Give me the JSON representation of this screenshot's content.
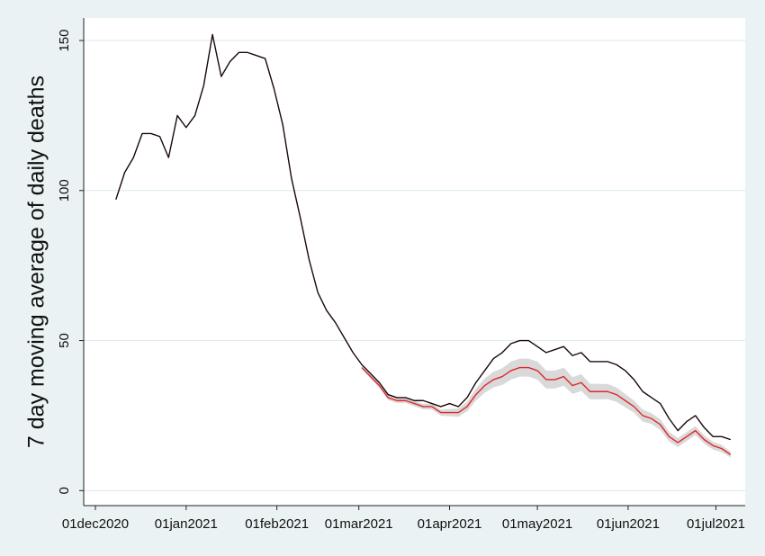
{
  "chart_data": {
    "type": "line",
    "y_label": "7 day moving average of daily deaths",
    "x": [
      "2020-12-08",
      "2020-12-11",
      "2020-12-14",
      "2020-12-17",
      "2020-12-20",
      "2020-12-23",
      "2020-12-26",
      "2020-12-29",
      "2021-01-01",
      "2021-01-04",
      "2021-01-07",
      "2021-01-10",
      "2021-01-13",
      "2021-01-16",
      "2021-01-19",
      "2021-01-22",
      "2021-01-25",
      "2021-01-28",
      "2021-01-31",
      "2021-02-03",
      "2021-02-06",
      "2021-02-09",
      "2021-02-12",
      "2021-02-15",
      "2021-02-18",
      "2021-02-21",
      "2021-02-24",
      "2021-02-27",
      "2021-03-02",
      "2021-03-05",
      "2021-03-08",
      "2021-03-11",
      "2021-03-14",
      "2021-03-17",
      "2021-03-20",
      "2021-03-23",
      "2021-03-26",
      "2021-03-29",
      "2021-04-01",
      "2021-04-04",
      "2021-04-07",
      "2021-04-10",
      "2021-04-13",
      "2021-04-16",
      "2021-04-19",
      "2021-04-22",
      "2021-04-25",
      "2021-04-28",
      "2021-05-01",
      "2021-05-04",
      "2021-05-07",
      "2021-05-10",
      "2021-05-13",
      "2021-05-16",
      "2021-05-19",
      "2021-05-22",
      "2021-05-25",
      "2021-05-28",
      "2021-05-31",
      "2021-06-03",
      "2021-06-06",
      "2021-06-09",
      "2021-06-12",
      "2021-06-15",
      "2021-06-18",
      "2021-06-21",
      "2021-06-24",
      "2021-06-27",
      "2021-06-30",
      "2021-07-03",
      "2021-07-06"
    ],
    "series": [
      {
        "color": "#1a0808",
        "values": [
          97,
          106,
          111,
          119,
          119,
          118,
          111,
          125,
          121,
          125,
          135,
          152,
          138,
          143,
          146,
          146,
          145,
          144,
          134,
          122,
          104,
          91,
          77,
          66,
          60,
          56,
          51,
          46,
          42,
          39,
          36,
          32,
          31,
          31,
          30,
          30,
          29,
          28,
          29,
          28,
          31,
          36,
          40,
          44,
          46,
          49,
          50,
          50,
          48,
          46,
          47,
          48,
          45,
          46,
          43,
          43,
          43,
          42,
          40,
          37,
          33,
          31,
          29,
          24,
          20,
          23,
          25,
          21,
          18,
          18,
          17
        ]
      },
      {
        "color": "#e0272b",
        "band_color": "#d9d9d9",
        "values": [
          null,
          null,
          null,
          null,
          null,
          null,
          null,
          null,
          null,
          null,
          null,
          null,
          null,
          null,
          null,
          null,
          null,
          null,
          null,
          null,
          null,
          null,
          null,
          null,
          null,
          null,
          null,
          null,
          41,
          38,
          35,
          31,
          30,
          30,
          29,
          28,
          28,
          26,
          26,
          26,
          28,
          32,
          35,
          37,
          38,
          40,
          41,
          41,
          40,
          37,
          37,
          38,
          35,
          36,
          33,
          33,
          33,
          32,
          30,
          28,
          25,
          24,
          22,
          18,
          16,
          18,
          20,
          17,
          15,
          14,
          12
        ],
        "lower": [
          null,
          null,
          null,
          null,
          null,
          null,
          null,
          null,
          null,
          null,
          null,
          null,
          null,
          null,
          null,
          null,
          null,
          null,
          null,
          null,
          null,
          null,
          null,
          null,
          null,
          null,
          null,
          null,
          40.5,
          37.4,
          34.3,
          30.2,
          29.2,
          29.2,
          28.1,
          27.1,
          27,
          25,
          24.8,
          24.6,
          26.4,
          30,
          32.6,
          34.4,
          35.2,
          37,
          38,
          38,
          37,
          34,
          34,
          35,
          32.2,
          33.2,
          30.4,
          30.4,
          30.5,
          29.6,
          27.8,
          26,
          23,
          22.2,
          20.2,
          16.4,
          14.5,
          16.5,
          18.5,
          15.6,
          13.7,
          12.8,
          11
        ],
        "upper": [
          null,
          null,
          null,
          null,
          null,
          null,
          null,
          null,
          null,
          null,
          null,
          null,
          null,
          null,
          null,
          null,
          null,
          null,
          null,
          null,
          null,
          null,
          null,
          null,
          null,
          null,
          null,
          null,
          41.5,
          38.6,
          35.7,
          31.8,
          30.8,
          30.8,
          29.9,
          28.9,
          29,
          27,
          27.2,
          27.4,
          29.6,
          34,
          37.4,
          39.6,
          40.8,
          43,
          44,
          44,
          43,
          40,
          40,
          41,
          37.8,
          38.8,
          35.6,
          35.6,
          35.5,
          34.4,
          32.2,
          30,
          27,
          25.8,
          23.8,
          19.6,
          17.5,
          19.5,
          21.5,
          18.4,
          16.3,
          15.2,
          13
        ]
      }
    ],
    "xlim": [
      "2020-11-27",
      "2021-07-11"
    ],
    "xticks": [
      {
        "value": "2020-12-01",
        "label": "01dec2020"
      },
      {
        "value": "2021-01-01",
        "label": "01jan2021"
      },
      {
        "value": "2021-02-01",
        "label": "01feb2021"
      },
      {
        "value": "2021-03-01",
        "label": "01mar2021"
      },
      {
        "value": "2021-04-01",
        "label": "01apr2021"
      },
      {
        "value": "2021-05-01",
        "label": "01may2021"
      },
      {
        "value": "2021-06-01",
        "label": "01jun2021"
      },
      {
        "value": "2021-07-01",
        "label": "01jul2021"
      }
    ],
    "ylim": [
      -5,
      157.5
    ],
    "yticks": [
      0,
      50,
      100,
      150
    ],
    "grid": true
  }
}
